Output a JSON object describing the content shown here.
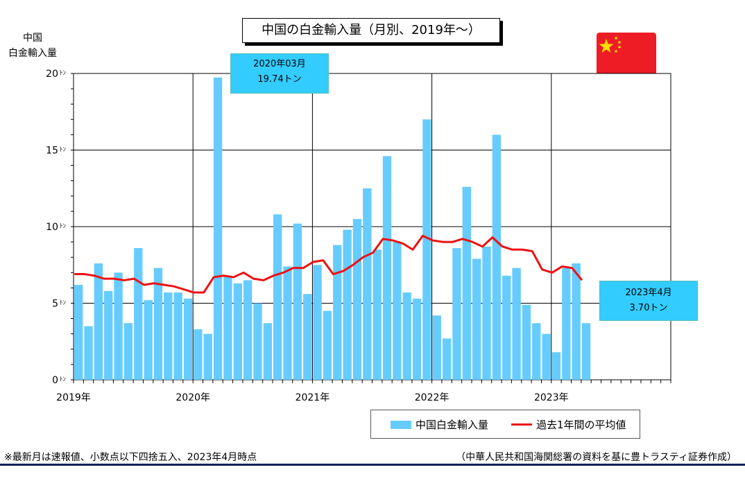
{
  "chart_data": {
    "type": "bar",
    "title": "中国の白金輸入量（月別、2019年～）",
    "ylabel_line1": "中国",
    "ylabel_line2": "白金輸入量",
    "ylim": [
      0,
      20
    ],
    "yticks": [
      0,
      5,
      10,
      15,
      20
    ],
    "ytick_unit": "ﾄﾝ",
    "year_labels": [
      "2019年",
      "2020年",
      "2021年",
      "2022年",
      "2023年"
    ],
    "total_slots": 60,
    "series": [
      {
        "name": "中国白金輸入量",
        "type": "bar",
        "color": "#66ccff",
        "values": [
          6.2,
          3.5,
          7.6,
          5.8,
          7.0,
          3.7,
          8.6,
          5.2,
          7.3,
          5.7,
          5.7,
          5.3,
          3.3,
          3.0,
          19.74,
          6.8,
          6.3,
          6.5,
          5.0,
          3.7,
          10.8,
          7.4,
          10.2,
          5.6,
          7.5,
          4.5,
          8.8,
          9.8,
          10.5,
          12.5,
          8.5,
          14.6,
          9.0,
          5.7,
          5.3,
          17.0,
          4.2,
          2.7,
          8.6,
          12.6,
          7.9,
          8.7,
          16.0,
          6.8,
          7.3,
          4.9,
          3.7,
          3.0,
          1.8,
          7.3,
          7.6,
          3.7
        ]
      },
      {
        "name": "過去1年間の平均値",
        "type": "line",
        "color": "#ee1111",
        "values": [
          6.9,
          6.9,
          6.8,
          6.6,
          6.6,
          6.5,
          6.6,
          6.2,
          6.3,
          6.2,
          6.1,
          5.9,
          5.7,
          5.7,
          6.7,
          6.8,
          6.7,
          7.0,
          6.6,
          6.5,
          6.8,
          7.0,
          7.3,
          7.3,
          7.7,
          7.8,
          6.9,
          7.1,
          7.5,
          8.0,
          8.3,
          9.2,
          9.1,
          8.9,
          8.5,
          9.4,
          9.1,
          9.0,
          9.0,
          9.2,
          9.0,
          8.7,
          9.3,
          8.7,
          8.5,
          8.5,
          8.4,
          7.2,
          7.0,
          7.4,
          7.3,
          6.5
        ]
      }
    ],
    "grid": true,
    "legend_position": "bottom-right",
    "annotations": [
      {
        "line1": "2020年03月",
        "line2": "19.74トン"
      },
      {
        "line1": "2023年4月",
        "line2": "3.70トン"
      }
    ]
  },
  "notes": {
    "left": "※最新月は速報値、小数点以下四捨五入、2023年4月時点",
    "right": "（中華人民共和国海関総署の資料を基に豊トラスティ証券作成）"
  },
  "flag_icon": "china-flag-icon"
}
